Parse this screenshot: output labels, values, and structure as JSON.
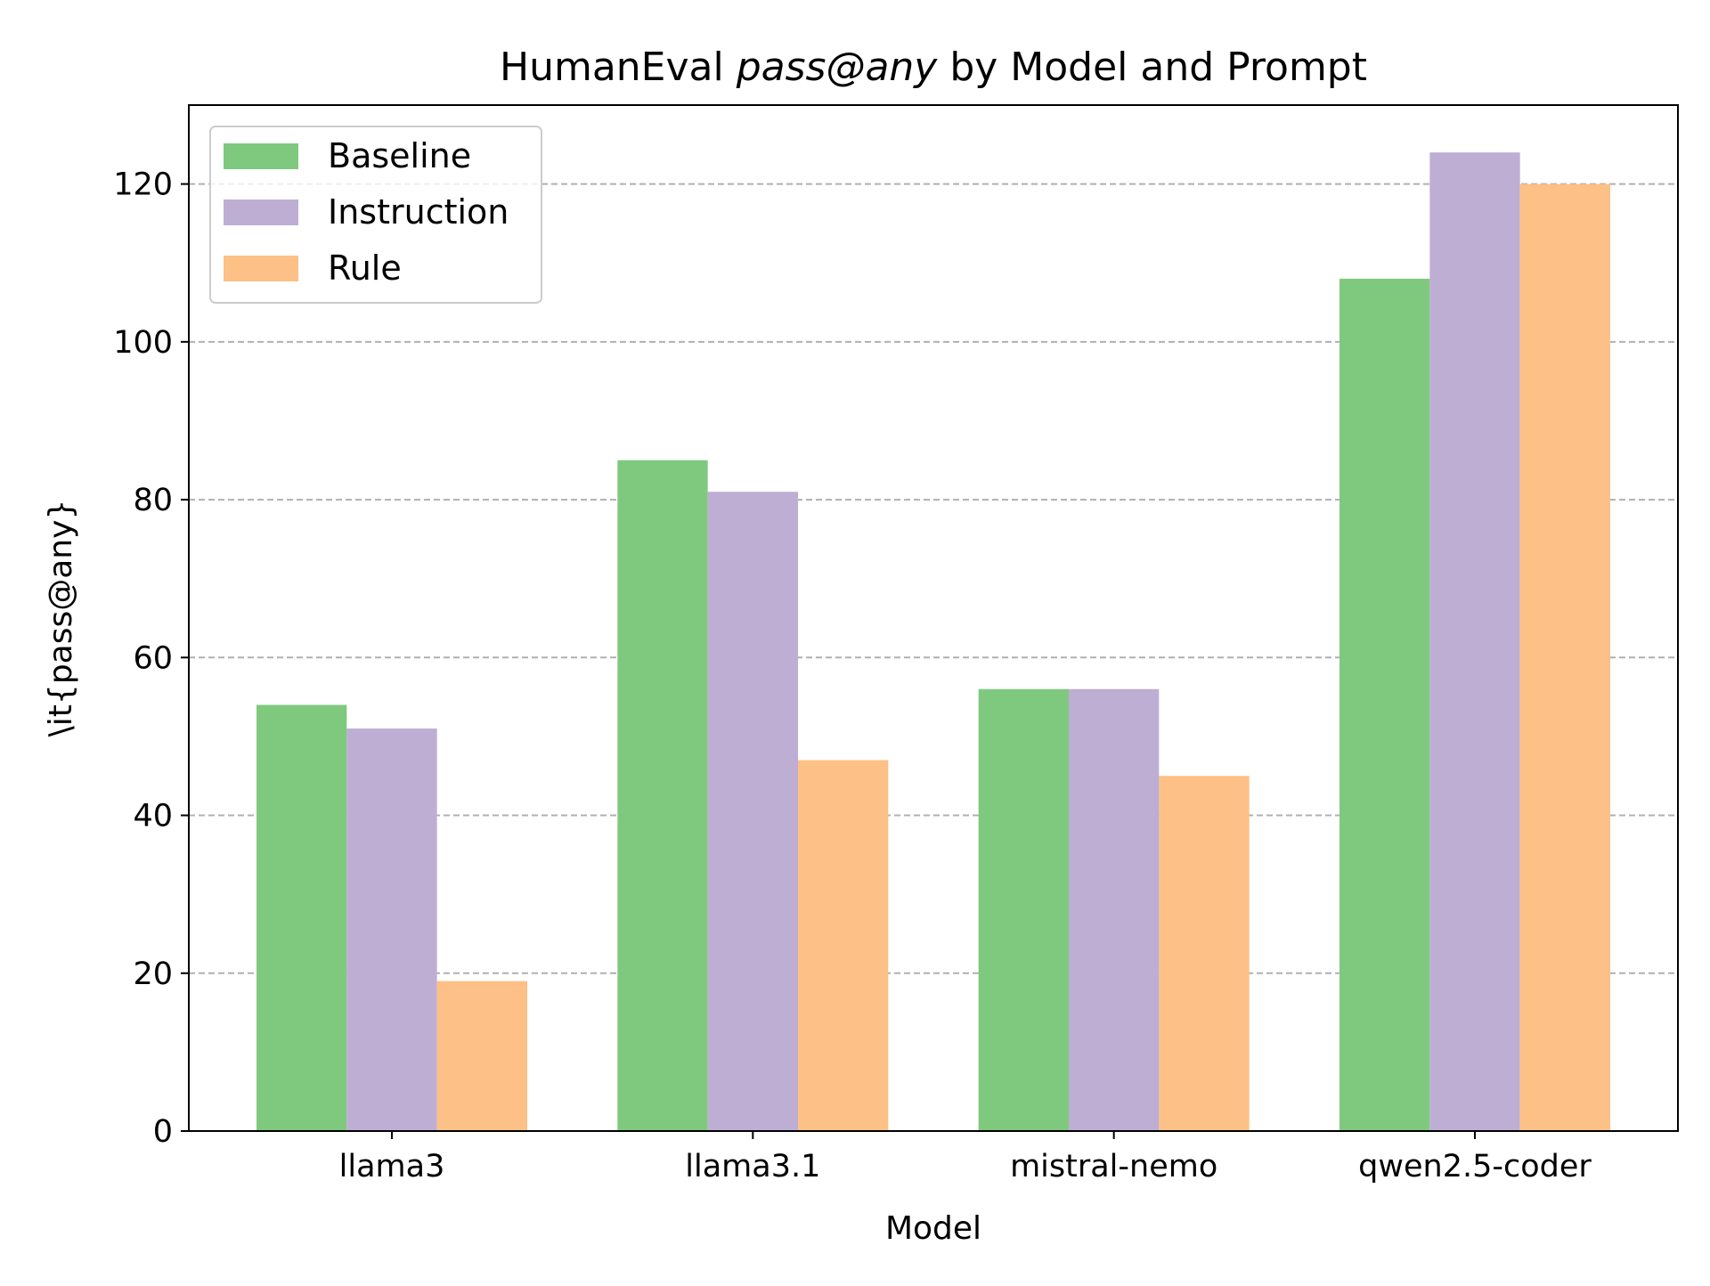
{
  "chart_data": {
    "type": "bar",
    "title": {
      "prefix": "HumanEval ",
      "italic": "pass@any",
      "suffix": " by Model and Prompt"
    },
    "xlabel": "Model",
    "ylabel": "\\it{pass@any}",
    "categories": [
      "llama3",
      "llama3.1",
      "mistral-nemo",
      "qwen2.5-coder"
    ],
    "series": [
      {
        "name": "Baseline",
        "color": "#7fc97f",
        "values": [
          54,
          85,
          56,
          108
        ]
      },
      {
        "name": "Instruction",
        "color": "#beaed4",
        "values": [
          51,
          81,
          56,
          124
        ]
      },
      {
        "name": "Rule",
        "color": "#fdc086",
        "values": [
          19,
          47,
          45,
          120
        ]
      }
    ],
    "ylim": [
      0,
      130
    ],
    "yticks": [
      0,
      20,
      40,
      60,
      80,
      100,
      120
    ],
    "grid": {
      "axis": "y",
      "style": "dashed",
      "color": "#b0b0b0"
    },
    "legend": {
      "placement": "top-left"
    }
  }
}
